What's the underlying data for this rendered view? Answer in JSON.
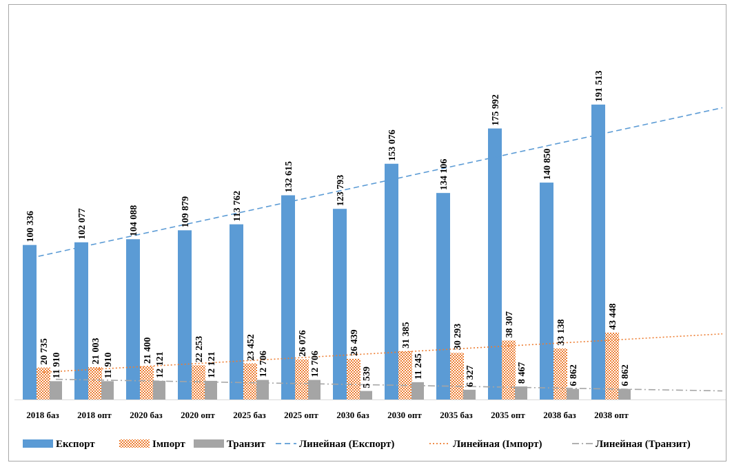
{
  "chart_data": {
    "type": "bar",
    "categories": [
      "2018 баз",
      "2018 опт",
      "2020 баз",
      "2020 опт",
      "2025 баз",
      "2025 опт",
      "2030 баз",
      "2030 опт",
      "2035 баз",
      "2035 опт",
      "2038 баз",
      "2038 опт"
    ],
    "series": [
      {
        "name": "Експорт",
        "color": "#5b9bd5",
        "pattern": "solid",
        "values": [
          100336,
          102077,
          104088,
          109879,
          113762,
          132615,
          123793,
          153076,
          134106,
          175992,
          140850,
          191513
        ],
        "labels": [
          "100 336",
          "102 077",
          "104 088",
          "109 879",
          "113 762",
          "132 615",
          "123 793",
          "153 076",
          "134 106",
          "175 992",
          "140 850",
          "191 513"
        ]
      },
      {
        "name": "Імпорт",
        "color": "#ed7d31",
        "pattern": "checker",
        "values": [
          20735,
          21003,
          21400,
          22253,
          23452,
          26076,
          26439,
          31385,
          30293,
          38307,
          33138,
          43448
        ],
        "labels": [
          "20 735",
          "21 003",
          "21 400",
          "22 253",
          "23 452",
          "26 076",
          "26 439",
          "31 385",
          "30 293",
          "38 307",
          "33 138",
          "43 448"
        ]
      },
      {
        "name": "Транзит",
        "color": "#a5a5a5",
        "pattern": "solid",
        "values": [
          11910,
          11910,
          12121,
          12121,
          12706,
          12706,
          5539,
          11245,
          6327,
          8467,
          6862,
          6862
        ],
        "labels": [
          "11 910",
          "11 910",
          "12 121",
          "12 121",
          "12 706",
          "12 706",
          "5 539",
          "11 245",
          "6 327",
          "8 467",
          "6 862",
          "6 862"
        ]
      }
    ],
    "trendlines": [
      {
        "name": "Линейная (Експорт)",
        "series": "Експорт",
        "color": "#5b9bd5",
        "style": "dashed"
      },
      {
        "name": "Линейная (Імпорт)",
        "series": "Імпорт",
        "color": "#ed7d31",
        "style": "dotted"
      },
      {
        "name": "Линейная (Транзит)",
        "series": "Транзит",
        "color": "#a5a5a5",
        "style": "dash-dot"
      }
    ],
    "ylim": [
      0,
      200000
    ],
    "grid": false,
    "legend_position": "bottom"
  }
}
